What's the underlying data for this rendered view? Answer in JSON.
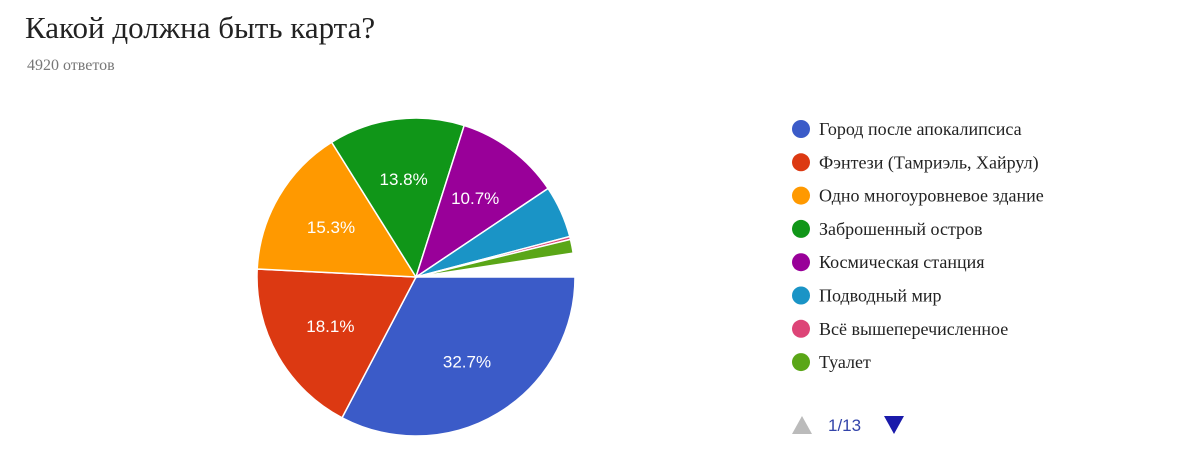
{
  "chart_data": {
    "type": "pie",
    "title": "Какой должна быть карта?",
    "subtitle": "4920 ответов",
    "categories": [
      "Город после апокалипсиса",
      "Фэнтези (Тамриэль, Хайрул)",
      "Одно многоуровневое здание",
      "Заброшенный остров",
      "Космическая станция",
      "Подводный мир",
      "Всё вышеперечисленное",
      "Туалет"
    ],
    "values": [
      32.7,
      18.1,
      15.3,
      13.8,
      10.7,
      5.3,
      0.3,
      1.4
    ],
    "value_labels": [
      "32.7%",
      "18.1%",
      "15.3%",
      "13.8%",
      "10.7%",
      null,
      null,
      null
    ],
    "colors": [
      "#3b5bc8",
      "#dc3912",
      "#ff9900",
      "#109618",
      "#990099",
      "#1a94c6",
      "#dd4477",
      "#5aa617"
    ],
    "legend": "right",
    "page_indicator": "1/13"
  }
}
